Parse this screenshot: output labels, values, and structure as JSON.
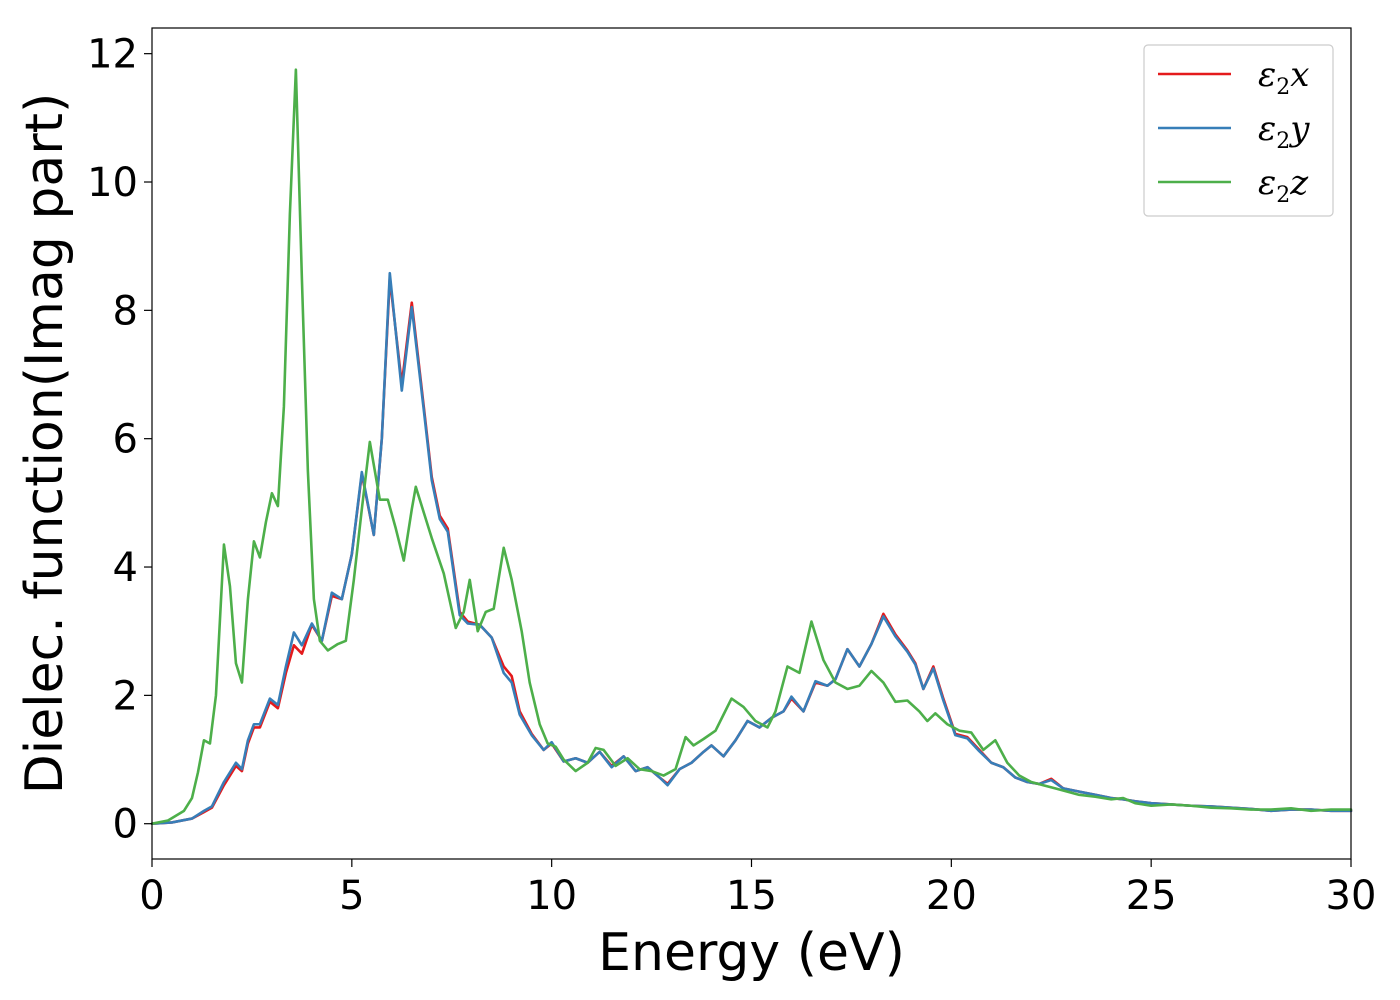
{
  "chart_data": {
    "type": "line",
    "title": "",
    "xlabel": "Energy (eV)",
    "ylabel": "Dielec. function(Imag part)",
    "xlim": [
      0,
      30
    ],
    "ylim": [
      -0.55,
      12.4
    ],
    "xticks": [
      0,
      5,
      10,
      15,
      20,
      25,
      30
    ],
    "yticks": [
      0,
      2,
      4,
      6,
      8,
      10,
      12
    ],
    "grid": false,
    "legend_position": "top-right",
    "series": [
      {
        "name": "ε2x",
        "legend": {
          "base": "ε",
          "sub": "2",
          "suffix": "x"
        },
        "color": "#e41a1c",
        "points": [
          [
            0,
            0
          ],
          [
            0.5,
            0.02
          ],
          [
            1,
            0.08
          ],
          [
            1.3,
            0.18
          ],
          [
            1.5,
            0.25
          ],
          [
            1.8,
            0.6
          ],
          [
            2.1,
            0.9
          ],
          [
            2.25,
            0.82
          ],
          [
            2.4,
            1.25
          ],
          [
            2.55,
            1.5
          ],
          [
            2.7,
            1.5
          ],
          [
            2.95,
            1.9
          ],
          [
            3.15,
            1.8
          ],
          [
            3.35,
            2.35
          ],
          [
            3.55,
            2.78
          ],
          [
            3.75,
            2.65
          ],
          [
            4.0,
            3.1
          ],
          [
            4.25,
            2.85
          ],
          [
            4.5,
            3.55
          ],
          [
            4.75,
            3.5
          ],
          [
            5.0,
            4.2
          ],
          [
            5.25,
            5.45
          ],
          [
            5.55,
            4.5
          ],
          [
            5.75,
            6.0
          ],
          [
            5.95,
            8.5
          ],
          [
            6.25,
            6.85
          ],
          [
            6.5,
            8.12
          ],
          [
            6.8,
            6.5
          ],
          [
            7.0,
            5.4
          ],
          [
            7.2,
            4.8
          ],
          [
            7.4,
            4.6
          ],
          [
            7.7,
            3.3
          ],
          [
            7.9,
            3.15
          ],
          [
            8.2,
            3.1
          ],
          [
            8.5,
            2.9
          ],
          [
            8.8,
            2.45
          ],
          [
            9.0,
            2.3
          ],
          [
            9.2,
            1.75
          ],
          [
            9.5,
            1.4
          ],
          [
            9.8,
            1.15
          ],
          [
            10.0,
            1.25
          ],
          [
            10.3,
            0.97
          ],
          [
            10.6,
            1.02
          ],
          [
            10.9,
            0.95
          ],
          [
            11.2,
            1.12
          ],
          [
            11.5,
            0.9
          ],
          [
            11.8,
            1.05
          ],
          [
            12.1,
            0.82
          ],
          [
            12.4,
            0.88
          ],
          [
            12.7,
            0.72
          ],
          [
            12.9,
            0.62
          ],
          [
            13.2,
            0.85
          ],
          [
            13.5,
            0.95
          ],
          [
            13.8,
            1.12
          ],
          [
            14.0,
            1.22
          ],
          [
            14.3,
            1.05
          ],
          [
            14.6,
            1.3
          ],
          [
            14.9,
            1.6
          ],
          [
            15.2,
            1.5
          ],
          [
            15.5,
            1.65
          ],
          [
            15.8,
            1.75
          ],
          [
            16.0,
            1.95
          ],
          [
            16.3,
            1.75
          ],
          [
            16.6,
            2.2
          ],
          [
            16.9,
            2.15
          ],
          [
            17.1,
            2.25
          ],
          [
            17.4,
            2.72
          ],
          [
            17.7,
            2.45
          ],
          [
            18.0,
            2.8
          ],
          [
            18.3,
            3.27
          ],
          [
            18.6,
            2.95
          ],
          [
            18.9,
            2.7
          ],
          [
            19.1,
            2.5
          ],
          [
            19.3,
            2.1
          ],
          [
            19.55,
            2.45
          ],
          [
            19.8,
            1.95
          ],
          [
            20.1,
            1.4
          ],
          [
            20.4,
            1.35
          ],
          [
            20.7,
            1.15
          ],
          [
            21.0,
            0.95
          ],
          [
            21.3,
            0.88
          ],
          [
            21.6,
            0.72
          ],
          [
            21.9,
            0.65
          ],
          [
            22.2,
            0.62
          ],
          [
            22.5,
            0.7
          ],
          [
            22.8,
            0.55
          ],
          [
            23.2,
            0.5
          ],
          [
            23.6,
            0.45
          ],
          [
            24.0,
            0.4
          ],
          [
            24.3,
            0.38
          ],
          [
            24.6,
            0.35
          ],
          [
            25.0,
            0.32
          ],
          [
            25.5,
            0.3
          ],
          [
            26.0,
            0.28
          ],
          [
            26.5,
            0.27
          ],
          [
            27.0,
            0.25
          ],
          [
            27.5,
            0.23
          ],
          [
            28.0,
            0.2
          ],
          [
            28.5,
            0.22
          ],
          [
            29.0,
            0.22
          ],
          [
            29.5,
            0.2
          ],
          [
            30.0,
            0.2
          ]
        ]
      },
      {
        "name": "ε2y",
        "legend": {
          "base": "ε",
          "sub": "2",
          "suffix": "y"
        },
        "color": "#377eb8",
        "points": [
          [
            0,
            0
          ],
          [
            0.5,
            0.02
          ],
          [
            1,
            0.08
          ],
          [
            1.3,
            0.2
          ],
          [
            1.5,
            0.27
          ],
          [
            1.8,
            0.65
          ],
          [
            2.1,
            0.95
          ],
          [
            2.25,
            0.85
          ],
          [
            2.4,
            1.3
          ],
          [
            2.55,
            1.55
          ],
          [
            2.7,
            1.55
          ],
          [
            2.95,
            1.95
          ],
          [
            3.15,
            1.85
          ],
          [
            3.35,
            2.45
          ],
          [
            3.55,
            2.98
          ],
          [
            3.75,
            2.78
          ],
          [
            4.0,
            3.12
          ],
          [
            4.25,
            2.85
          ],
          [
            4.5,
            3.6
          ],
          [
            4.75,
            3.5
          ],
          [
            5.0,
            4.2
          ],
          [
            5.25,
            5.48
          ],
          [
            5.55,
            4.5
          ],
          [
            5.75,
            6.0
          ],
          [
            5.95,
            8.58
          ],
          [
            6.25,
            6.75
          ],
          [
            6.5,
            8.05
          ],
          [
            6.8,
            6.45
          ],
          [
            7.0,
            5.35
          ],
          [
            7.2,
            4.75
          ],
          [
            7.4,
            4.55
          ],
          [
            7.7,
            3.25
          ],
          [
            7.9,
            3.12
          ],
          [
            8.2,
            3.1
          ],
          [
            8.5,
            2.9
          ],
          [
            8.8,
            2.35
          ],
          [
            9.0,
            2.2
          ],
          [
            9.2,
            1.7
          ],
          [
            9.5,
            1.38
          ],
          [
            9.8,
            1.15
          ],
          [
            10.0,
            1.27
          ],
          [
            10.3,
            0.97
          ],
          [
            10.6,
            1.02
          ],
          [
            10.9,
            0.95
          ],
          [
            11.2,
            1.12
          ],
          [
            11.5,
            0.88
          ],
          [
            11.8,
            1.05
          ],
          [
            12.1,
            0.82
          ],
          [
            12.4,
            0.88
          ],
          [
            12.7,
            0.72
          ],
          [
            12.9,
            0.6
          ],
          [
            13.2,
            0.85
          ],
          [
            13.5,
            0.95
          ],
          [
            13.8,
            1.12
          ],
          [
            14.0,
            1.22
          ],
          [
            14.3,
            1.05
          ],
          [
            14.6,
            1.3
          ],
          [
            14.9,
            1.6
          ],
          [
            15.2,
            1.5
          ],
          [
            15.5,
            1.65
          ],
          [
            15.8,
            1.75
          ],
          [
            16.0,
            1.98
          ],
          [
            16.3,
            1.75
          ],
          [
            16.6,
            2.22
          ],
          [
            16.9,
            2.15
          ],
          [
            17.1,
            2.25
          ],
          [
            17.4,
            2.72
          ],
          [
            17.7,
            2.45
          ],
          [
            18.0,
            2.8
          ],
          [
            18.3,
            3.23
          ],
          [
            18.6,
            2.92
          ],
          [
            18.9,
            2.68
          ],
          [
            19.1,
            2.48
          ],
          [
            19.3,
            2.1
          ],
          [
            19.55,
            2.42
          ],
          [
            19.8,
            1.92
          ],
          [
            20.1,
            1.38
          ],
          [
            20.4,
            1.33
          ],
          [
            20.7,
            1.13
          ],
          [
            21.0,
            0.95
          ],
          [
            21.3,
            0.88
          ],
          [
            21.6,
            0.72
          ],
          [
            21.9,
            0.65
          ],
          [
            22.2,
            0.62
          ],
          [
            22.5,
            0.68
          ],
          [
            22.8,
            0.55
          ],
          [
            23.2,
            0.5
          ],
          [
            23.6,
            0.45
          ],
          [
            24.0,
            0.4
          ],
          [
            24.3,
            0.38
          ],
          [
            24.6,
            0.35
          ],
          [
            25.0,
            0.32
          ],
          [
            25.5,
            0.3
          ],
          [
            26.0,
            0.28
          ],
          [
            26.5,
            0.27
          ],
          [
            27.0,
            0.25
          ],
          [
            27.5,
            0.23
          ],
          [
            28.0,
            0.2
          ],
          [
            28.5,
            0.22
          ],
          [
            29.0,
            0.22
          ],
          [
            29.5,
            0.2
          ],
          [
            30.0,
            0.2
          ]
        ]
      },
      {
        "name": "ε2z",
        "legend": {
          "base": "ε",
          "sub": "2",
          "suffix": "z"
        },
        "color": "#4daf4a",
        "points": [
          [
            0,
            0
          ],
          [
            0.4,
            0.05
          ],
          [
            0.8,
            0.2
          ],
          [
            1.0,
            0.4
          ],
          [
            1.15,
            0.8
          ],
          [
            1.3,
            1.3
          ],
          [
            1.45,
            1.25
          ],
          [
            1.6,
            2.0
          ],
          [
            1.8,
            4.35
          ],
          [
            1.95,
            3.7
          ],
          [
            2.1,
            2.5
          ],
          [
            2.25,
            2.2
          ],
          [
            2.4,
            3.5
          ],
          [
            2.55,
            4.4
          ],
          [
            2.7,
            4.15
          ],
          [
            2.85,
            4.7
          ],
          [
            3.0,
            5.15
          ],
          [
            3.15,
            4.95
          ],
          [
            3.3,
            6.5
          ],
          [
            3.45,
            9.5
          ],
          [
            3.6,
            11.75
          ],
          [
            3.75,
            8.5
          ],
          [
            3.9,
            5.5
          ],
          [
            4.05,
            3.5
          ],
          [
            4.2,
            2.85
          ],
          [
            4.4,
            2.7
          ],
          [
            4.65,
            2.8
          ],
          [
            4.85,
            2.85
          ],
          [
            5.05,
            3.8
          ],
          [
            5.25,
            4.9
          ],
          [
            5.45,
            5.95
          ],
          [
            5.7,
            5.05
          ],
          [
            5.9,
            5.05
          ],
          [
            6.1,
            4.6
          ],
          [
            6.3,
            4.1
          ],
          [
            6.5,
            4.9
          ],
          [
            6.6,
            5.25
          ],
          [
            6.8,
            4.85
          ],
          [
            7.0,
            4.45
          ],
          [
            7.3,
            3.9
          ],
          [
            7.6,
            3.05
          ],
          [
            7.8,
            3.3
          ],
          [
            7.95,
            3.8
          ],
          [
            8.15,
            3.0
          ],
          [
            8.35,
            3.3
          ],
          [
            8.55,
            3.35
          ],
          [
            8.8,
            4.3
          ],
          [
            9.0,
            3.8
          ],
          [
            9.25,
            3.0
          ],
          [
            9.45,
            2.2
          ],
          [
            9.7,
            1.55
          ],
          [
            9.9,
            1.25
          ],
          [
            10.1,
            1.2
          ],
          [
            10.3,
            1.0
          ],
          [
            10.6,
            0.82
          ],
          [
            10.9,
            0.95
          ],
          [
            11.1,
            1.18
          ],
          [
            11.3,
            1.15
          ],
          [
            11.6,
            0.9
          ],
          [
            11.9,
            1.02
          ],
          [
            12.2,
            0.85
          ],
          [
            12.5,
            0.82
          ],
          [
            12.8,
            0.75
          ],
          [
            13.1,
            0.85
          ],
          [
            13.35,
            1.35
          ],
          [
            13.55,
            1.22
          ],
          [
            13.8,
            1.32
          ],
          [
            14.1,
            1.45
          ],
          [
            14.3,
            1.7
          ],
          [
            14.5,
            1.95
          ],
          [
            14.8,
            1.82
          ],
          [
            15.1,
            1.6
          ],
          [
            15.4,
            1.5
          ],
          [
            15.6,
            1.75
          ],
          [
            15.9,
            2.45
          ],
          [
            16.2,
            2.35
          ],
          [
            16.5,
            3.15
          ],
          [
            16.8,
            2.55
          ],
          [
            17.1,
            2.2
          ],
          [
            17.4,
            2.1
          ],
          [
            17.7,
            2.15
          ],
          [
            18.0,
            2.38
          ],
          [
            18.3,
            2.2
          ],
          [
            18.6,
            1.9
          ],
          [
            18.9,
            1.92
          ],
          [
            19.2,
            1.75
          ],
          [
            19.4,
            1.6
          ],
          [
            19.6,
            1.72
          ],
          [
            19.9,
            1.55
          ],
          [
            20.2,
            1.45
          ],
          [
            20.5,
            1.42
          ],
          [
            20.8,
            1.15
          ],
          [
            21.1,
            1.3
          ],
          [
            21.4,
            0.95
          ],
          [
            21.7,
            0.75
          ],
          [
            22.0,
            0.65
          ],
          [
            22.3,
            0.6
          ],
          [
            22.6,
            0.55
          ],
          [
            22.9,
            0.5
          ],
          [
            23.2,
            0.45
          ],
          [
            23.6,
            0.42
          ],
          [
            24.0,
            0.38
          ],
          [
            24.3,
            0.4
          ],
          [
            24.6,
            0.32
          ],
          [
            25.0,
            0.28
          ],
          [
            25.5,
            0.3
          ],
          [
            26.0,
            0.28
          ],
          [
            26.5,
            0.25
          ],
          [
            27.0,
            0.24
          ],
          [
            27.5,
            0.22
          ],
          [
            28.0,
            0.22
          ],
          [
            28.5,
            0.24
          ],
          [
            29.0,
            0.2
          ],
          [
            29.5,
            0.22
          ],
          [
            30.0,
            0.22
          ]
        ]
      }
    ]
  }
}
